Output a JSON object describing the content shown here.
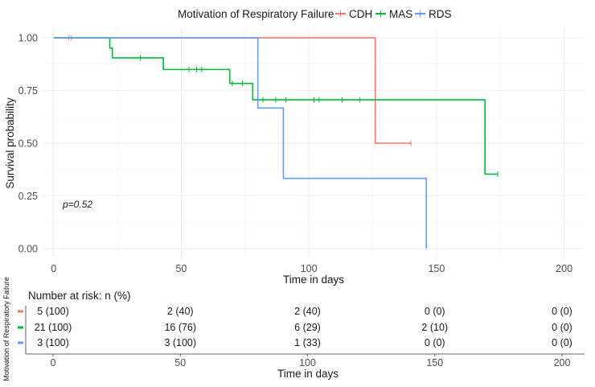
{
  "chart_data": {
    "type": "line",
    "subtype": "kaplan-meier",
    "legend": {
      "title": "Motivation of Respiratory Failure",
      "position": "top",
      "entries": [
        "CDH",
        "MAS",
        "RDS"
      ]
    },
    "colors": {
      "CDH": "#F8766D",
      "MAS": "#00BA38",
      "RDS": "#619CFF"
    },
    "xlabel": "Time in days",
    "ylabel": "Survival probability",
    "xlim": [
      -4,
      208
    ],
    "ylim": [
      -0.05,
      1.05
    ],
    "xticks": [
      0,
      50,
      100,
      150,
      200
    ],
    "xtick_labels": [
      "0",
      "50",
      "100",
      "150",
      "200"
    ],
    "yticks": [
      0,
      0.25,
      0.5,
      0.75,
      1.0
    ],
    "ytick_labels": [
      "0.00",
      "0.25",
      "0.50",
      "0.75",
      "1.00"
    ],
    "grid": true,
    "pvalue": "p=0.52",
    "series": [
      {
        "name": "CDH",
        "steps": [
          [
            0,
            1.0
          ],
          [
            126,
            0.5
          ],
          [
            140,
            0.5
          ]
        ],
        "censors": [
          [
            6,
            1.0
          ],
          [
            7,
            1.0
          ],
          [
            140,
            0.5
          ]
        ]
      },
      {
        "name": "MAS",
        "steps": [
          [
            0,
            1.0
          ],
          [
            22,
            0.952
          ],
          [
            23,
            0.905
          ],
          [
            43,
            0.85
          ],
          [
            69,
            0.784
          ],
          [
            78,
            0.706
          ],
          [
            169,
            0.353
          ],
          [
            174,
            0.353
          ]
        ],
        "censors": [
          [
            34,
            0.905
          ],
          [
            53,
            0.85
          ],
          [
            56,
            0.85
          ],
          [
            58,
            0.85
          ],
          [
            70,
            0.784
          ],
          [
            74,
            0.784
          ],
          [
            82,
            0.706
          ],
          [
            87,
            0.706
          ],
          [
            91,
            0.706
          ],
          [
            102,
            0.706
          ],
          [
            104,
            0.706
          ],
          [
            113,
            0.706
          ],
          [
            120,
            0.706
          ],
          [
            174,
            0.353
          ]
        ]
      },
      {
        "name": "RDS",
        "steps": [
          [
            0,
            1.0
          ],
          [
            80,
            0.667
          ],
          [
            90,
            0.333
          ],
          [
            146,
            0.0
          ]
        ],
        "censors": []
      }
    ],
    "risk_table": {
      "title": "Number at risk: n (%)",
      "ylabel": "Motivation of Respiratory Failure",
      "xlabel": "Time in days",
      "times": [
        0,
        50,
        100,
        150,
        200
      ],
      "time_labels": [
        "0",
        "50",
        "100",
        "150",
        "200"
      ],
      "rows": [
        {
          "group": "CDH",
          "values": [
            "5 (100)",
            "2 (40)",
            "2 (40)",
            "0 (0)",
            "0 (0)"
          ]
        },
        {
          "group": "MAS",
          "values": [
            "21 (100)",
            "16 (76)",
            "6 (29)",
            "2 (10)",
            "0 (0)"
          ]
        },
        {
          "group": "RDS",
          "values": [
            "3 (100)",
            "3 (100)",
            "1 (33)",
            "0 (0)",
            "0 (0)"
          ]
        }
      ]
    }
  }
}
